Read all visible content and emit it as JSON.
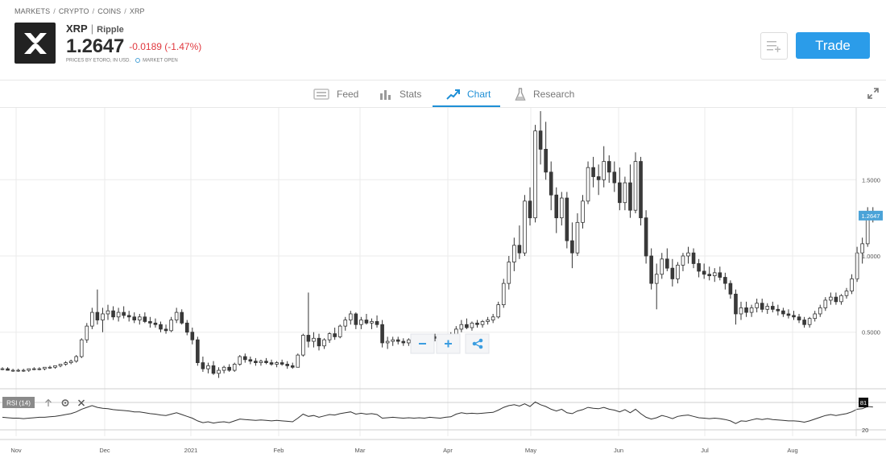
{
  "breadcrumb": [
    "MARKETS",
    "CRYPTO",
    "COINS",
    "XRP"
  ],
  "instrument": {
    "symbol": "XRP",
    "name": "Ripple",
    "price": "1.2647",
    "change": "-0.0189 (-1.47%)",
    "prices_note": "PRICES BY ETORO, IN USD.",
    "market_status": "MARKET OPEN"
  },
  "actions": {
    "trade_label": "Trade"
  },
  "tabs": [
    {
      "label": "Feed",
      "icon": "feed-icon"
    },
    {
      "label": "Stats",
      "icon": "stats-icon"
    },
    {
      "label": "Chart",
      "icon": "chart-icon",
      "active": true
    },
    {
      "label": "Research",
      "icon": "research-icon"
    }
  ],
  "colors": {
    "accent": "#2b9ce9",
    "negative": "#e0383e",
    "price_label_bg": "#4ba3d8"
  },
  "chart_data": {
    "type": "candlestick",
    "x_tick_labels": [
      "Nov",
      "Dec",
      "2021",
      "Feb",
      "Mar",
      "Apr",
      "May",
      "Jun",
      "Jul",
      "Aug"
    ],
    "y_tick_labels": [
      "1.5000",
      "1.0000",
      "0.5000"
    ],
    "last_price_label": "1.2647",
    "series": [
      {
        "values": [
          [
            0.26,
            0.27,
            0.25,
            0.26
          ],
          [
            0.26,
            0.27,
            0.25,
            0.25
          ],
          [
            0.25,
            0.26,
            0.24,
            0.25
          ],
          [
            0.25,
            0.26,
            0.24,
            0.25
          ],
          [
            0.25,
            0.26,
            0.24,
            0.25
          ],
          [
            0.25,
            0.26,
            0.24,
            0.26
          ],
          [
            0.26,
            0.27,
            0.25,
            0.26
          ],
          [
            0.26,
            0.27,
            0.25,
            0.26
          ],
          [
            0.26,
            0.27,
            0.25,
            0.27
          ],
          [
            0.27,
            0.28,
            0.26,
            0.27
          ],
          [
            0.27,
            0.28,
            0.26,
            0.28
          ],
          [
            0.28,
            0.29,
            0.27,
            0.29
          ],
          [
            0.29,
            0.31,
            0.28,
            0.3
          ],
          [
            0.3,
            0.32,
            0.29,
            0.31
          ],
          [
            0.31,
            0.35,
            0.3,
            0.34
          ],
          [
            0.34,
            0.46,
            0.33,
            0.45
          ],
          [
            0.45,
            0.56,
            0.43,
            0.54
          ],
          [
            0.54,
            0.66,
            0.52,
            0.63
          ],
          [
            0.63,
            0.78,
            0.55,
            0.58
          ],
          [
            0.58,
            0.66,
            0.5,
            0.62
          ],
          [
            0.62,
            0.68,
            0.58,
            0.64
          ],
          [
            0.64,
            0.67,
            0.58,
            0.6
          ],
          [
            0.6,
            0.66,
            0.57,
            0.63
          ],
          [
            0.63,
            0.67,
            0.59,
            0.61
          ],
          [
            0.61,
            0.64,
            0.57,
            0.6
          ],
          [
            0.6,
            0.63,
            0.56,
            0.58
          ],
          [
            0.58,
            0.62,
            0.55,
            0.6
          ],
          [
            0.6,
            0.63,
            0.56,
            0.57
          ],
          [
            0.57,
            0.6,
            0.53,
            0.56
          ],
          [
            0.56,
            0.59,
            0.53,
            0.55
          ],
          [
            0.55,
            0.57,
            0.5,
            0.52
          ],
          [
            0.52,
            0.55,
            0.49,
            0.51
          ],
          [
            0.51,
            0.6,
            0.5,
            0.58
          ],
          [
            0.58,
            0.66,
            0.56,
            0.63
          ],
          [
            0.63,
            0.65,
            0.55,
            0.56
          ],
          [
            0.56,
            0.58,
            0.48,
            0.5
          ],
          [
            0.5,
            0.53,
            0.42,
            0.45
          ],
          [
            0.45,
            0.47,
            0.28,
            0.3
          ],
          [
            0.3,
            0.34,
            0.24,
            0.26
          ],
          [
            0.26,
            0.3,
            0.23,
            0.28
          ],
          [
            0.28,
            0.31,
            0.22,
            0.23
          ],
          [
            0.23,
            0.27,
            0.2,
            0.25
          ],
          [
            0.25,
            0.28,
            0.23,
            0.27
          ],
          [
            0.27,
            0.29,
            0.24,
            0.25
          ],
          [
            0.25,
            0.3,
            0.24,
            0.29
          ],
          [
            0.29,
            0.35,
            0.28,
            0.34
          ],
          [
            0.34,
            0.36,
            0.3,
            0.32
          ],
          [
            0.32,
            0.34,
            0.29,
            0.31
          ],
          [
            0.31,
            0.33,
            0.28,
            0.3
          ],
          [
            0.3,
            0.32,
            0.28,
            0.31
          ],
          [
            0.31,
            0.33,
            0.29,
            0.3
          ],
          [
            0.3,
            0.32,
            0.28,
            0.29
          ],
          [
            0.29,
            0.31,
            0.27,
            0.3
          ],
          [
            0.3,
            0.32,
            0.28,
            0.29
          ],
          [
            0.29,
            0.31,
            0.26,
            0.28
          ],
          [
            0.28,
            0.3,
            0.26,
            0.27
          ],
          [
            0.27,
            0.36,
            0.27,
            0.35
          ],
          [
            0.35,
            0.49,
            0.34,
            0.48
          ],
          [
            0.48,
            0.76,
            0.4,
            0.44
          ],
          [
            0.44,
            0.5,
            0.4,
            0.46
          ],
          [
            0.46,
            0.49,
            0.38,
            0.41
          ],
          [
            0.41,
            0.46,
            0.39,
            0.45
          ],
          [
            0.45,
            0.5,
            0.43,
            0.49
          ],
          [
            0.49,
            0.53,
            0.45,
            0.47
          ],
          [
            0.47,
            0.55,
            0.46,
            0.54
          ],
          [
            0.54,
            0.6,
            0.51,
            0.58
          ],
          [
            0.58,
            0.64,
            0.55,
            0.62
          ],
          [
            0.62,
            0.63,
            0.52,
            0.55
          ],
          [
            0.55,
            0.6,
            0.52,
            0.58
          ],
          [
            0.58,
            0.62,
            0.55,
            0.56
          ],
          [
            0.56,
            0.59,
            0.52,
            0.57
          ],
          [
            0.57,
            0.61,
            0.53,
            0.55
          ],
          [
            0.55,
            0.58,
            0.4,
            0.43
          ],
          [
            0.43,
            0.47,
            0.39,
            0.44
          ],
          [
            0.44,
            0.47,
            0.41,
            0.45
          ],
          [
            0.45,
            0.47,
            0.42,
            0.44
          ],
          [
            0.44,
            0.46,
            0.41,
            0.43
          ],
          [
            0.43,
            0.46,
            0.41,
            0.45
          ],
          [
            0.45,
            0.47,
            0.42,
            0.44
          ],
          [
            0.44,
            0.47,
            0.42,
            0.46
          ],
          [
            0.46,
            0.48,
            0.43,
            0.45
          ],
          [
            0.45,
            0.48,
            0.43,
            0.47
          ],
          [
            0.47,
            0.49,
            0.44,
            0.46
          ],
          [
            0.46,
            0.49,
            0.43,
            0.45
          ],
          [
            0.45,
            0.48,
            0.43,
            0.47
          ],
          [
            0.47,
            0.5,
            0.45,
            0.48
          ],
          [
            0.48,
            0.54,
            0.46,
            0.52
          ],
          [
            0.52,
            0.58,
            0.5,
            0.55
          ],
          [
            0.55,
            0.59,
            0.52,
            0.53
          ],
          [
            0.53,
            0.57,
            0.51,
            0.56
          ],
          [
            0.56,
            0.58,
            0.53,
            0.55
          ],
          [
            0.55,
            0.58,
            0.53,
            0.57
          ],
          [
            0.57,
            0.6,
            0.55,
            0.58
          ],
          [
            0.58,
            0.62,
            0.56,
            0.6
          ],
          [
            0.6,
            0.7,
            0.59,
            0.68
          ],
          [
            0.68,
            0.85,
            0.66,
            0.82
          ],
          [
            0.82,
            1.0,
            0.78,
            0.96
          ],
          [
            0.96,
            1.12,
            0.9,
            1.07
          ],
          [
            1.07,
            1.2,
            0.98,
            1.02
          ],
          [
            1.02,
            1.4,
            1.0,
            1.36
          ],
          [
            1.36,
            1.45,
            1.2,
            1.25
          ],
          [
            1.25,
            1.86,
            1.22,
            1.82
          ],
          [
            1.82,
            1.95,
            1.6,
            1.7
          ],
          [
            1.7,
            1.88,
            1.5,
            1.55
          ],
          [
            1.55,
            1.62,
            1.3,
            1.4
          ],
          [
            1.4,
            1.45,
            1.15,
            1.25
          ],
          [
            1.25,
            1.42,
            1.2,
            1.38
          ],
          [
            1.38,
            1.42,
            1.05,
            1.1
          ],
          [
            1.1,
            1.22,
            0.92,
            1.02
          ],
          [
            1.02,
            1.28,
            1.0,
            1.22
          ],
          [
            1.22,
            1.4,
            1.18,
            1.36
          ],
          [
            1.36,
            1.62,
            1.34,
            1.58
          ],
          [
            1.58,
            1.65,
            1.45,
            1.52
          ],
          [
            1.52,
            1.6,
            1.4,
            1.5
          ],
          [
            1.5,
            1.72,
            1.45,
            1.62
          ],
          [
            1.62,
            1.66,
            1.48,
            1.55
          ],
          [
            1.55,
            1.62,
            1.42,
            1.48
          ],
          [
            1.48,
            1.58,
            1.3,
            1.35
          ],
          [
            1.35,
            1.52,
            1.3,
            1.48
          ],
          [
            1.48,
            1.6,
            1.25,
            1.3
          ],
          [
            1.3,
            1.68,
            1.28,
            1.62
          ],
          [
            1.62,
            1.65,
            1.2,
            1.25
          ],
          [
            1.25,
            1.3,
            0.95,
            1.0
          ],
          [
            1.0,
            1.05,
            0.78,
            0.82
          ],
          [
            0.82,
            0.95,
            0.65,
            0.88
          ],
          [
            0.88,
            1.02,
            0.85,
            0.98
          ],
          [
            0.98,
            1.05,
            0.9,
            0.92
          ],
          [
            0.92,
            0.98,
            0.8,
            0.85
          ],
          [
            0.85,
            0.96,
            0.82,
            0.94
          ],
          [
            0.94,
            1.02,
            0.9,
            1.0
          ],
          [
            1.0,
            1.06,
            0.95,
            1.02
          ],
          [
            1.02,
            1.05,
            0.92,
            0.95
          ],
          [
            0.95,
            0.98,
            0.86,
            0.9
          ],
          [
            0.9,
            0.95,
            0.85,
            0.88
          ],
          [
            0.88,
            0.93,
            0.84,
            0.87
          ],
          [
            0.87,
            0.92,
            0.83,
            0.89
          ],
          [
            0.89,
            0.93,
            0.84,
            0.86
          ],
          [
            0.86,
            0.89,
            0.78,
            0.82
          ],
          [
            0.82,
            0.84,
            0.72,
            0.75
          ],
          [
            0.75,
            0.78,
            0.55,
            0.62
          ],
          [
            0.62,
            0.7,
            0.58,
            0.66
          ],
          [
            0.66,
            0.7,
            0.6,
            0.63
          ],
          [
            0.63,
            0.68,
            0.6,
            0.66
          ],
          [
            0.66,
            0.72,
            0.63,
            0.69
          ],
          [
            0.69,
            0.72,
            0.63,
            0.65
          ],
          [
            0.65,
            0.69,
            0.62,
            0.67
          ],
          [
            0.67,
            0.7,
            0.63,
            0.65
          ],
          [
            0.65,
            0.68,
            0.61,
            0.64
          ],
          [
            0.64,
            0.66,
            0.6,
            0.62
          ],
          [
            0.62,
            0.65,
            0.59,
            0.61
          ],
          [
            0.61,
            0.64,
            0.58,
            0.6
          ],
          [
            0.6,
            0.62,
            0.56,
            0.58
          ],
          [
            0.58,
            0.6,
            0.53,
            0.55
          ],
          [
            0.55,
            0.6,
            0.53,
            0.59
          ],
          [
            0.59,
            0.64,
            0.57,
            0.62
          ],
          [
            0.62,
            0.68,
            0.6,
            0.66
          ],
          [
            0.66,
            0.73,
            0.64,
            0.71
          ],
          [
            0.71,
            0.76,
            0.68,
            0.73
          ],
          [
            0.73,
            0.76,
            0.68,
            0.7
          ],
          [
            0.7,
            0.75,
            0.68,
            0.74
          ],
          [
            0.74,
            0.79,
            0.72,
            0.77
          ],
          [
            0.77,
            0.88,
            0.75,
            0.85
          ],
          [
            0.85,
            1.06,
            0.83,
            1.02
          ],
          [
            1.02,
            1.12,
            0.95,
            1.08
          ],
          [
            1.08,
            1.32,
            1.06,
            1.28
          ],
          [
            1.28,
            1.32,
            1.22,
            1.26
          ]
        ]
      }
    ],
    "rsi": {
      "label": "RSI (14)",
      "level_labels": [
        "81",
        "20"
      ],
      "values": [
        48,
        47,
        46,
        46,
        45,
        46,
        47,
        48,
        48,
        49,
        50,
        52,
        54,
        56,
        60,
        66,
        70,
        74,
        70,
        68,
        67,
        65,
        64,
        63,
        62,
        60,
        60,
        58,
        56,
        55,
        53,
        52,
        55,
        58,
        54,
        50,
        46,
        40,
        36,
        38,
        35,
        37,
        38,
        36,
        40,
        44,
        43,
        42,
        41,
        42,
        41,
        40,
        41,
        40,
        39,
        38,
        46,
        55,
        50,
        52,
        48,
        51,
        54,
        53,
        56,
        58,
        60,
        55,
        57,
        55,
        56,
        54,
        46,
        47,
        48,
        47,
        46,
        47,
        46,
        47,
        46,
        48,
        47,
        46,
        48,
        49,
        55,
        58,
        56,
        57,
        56,
        57,
        58,
        59,
        64,
        70,
        74,
        76,
        73,
        78,
        72,
        82,
        76,
        72,
        66,
        62,
        66,
        58,
        56,
        62,
        65,
        70,
        68,
        67,
        70,
        66,
        64,
        60,
        65,
        58,
        66,
        56,
        48,
        44,
        47,
        52,
        49,
        45,
        50,
        52,
        53,
        50,
        47,
        46,
        45,
        46,
        45,
        43,
        40,
        34,
        40,
        39,
        42,
        45,
        43,
        45,
        43,
        42,
        41,
        40,
        40,
        39,
        37,
        40,
        44,
        48,
        52,
        54,
        52,
        54,
        56,
        60,
        66,
        67,
        72,
        71
      ]
    }
  }
}
